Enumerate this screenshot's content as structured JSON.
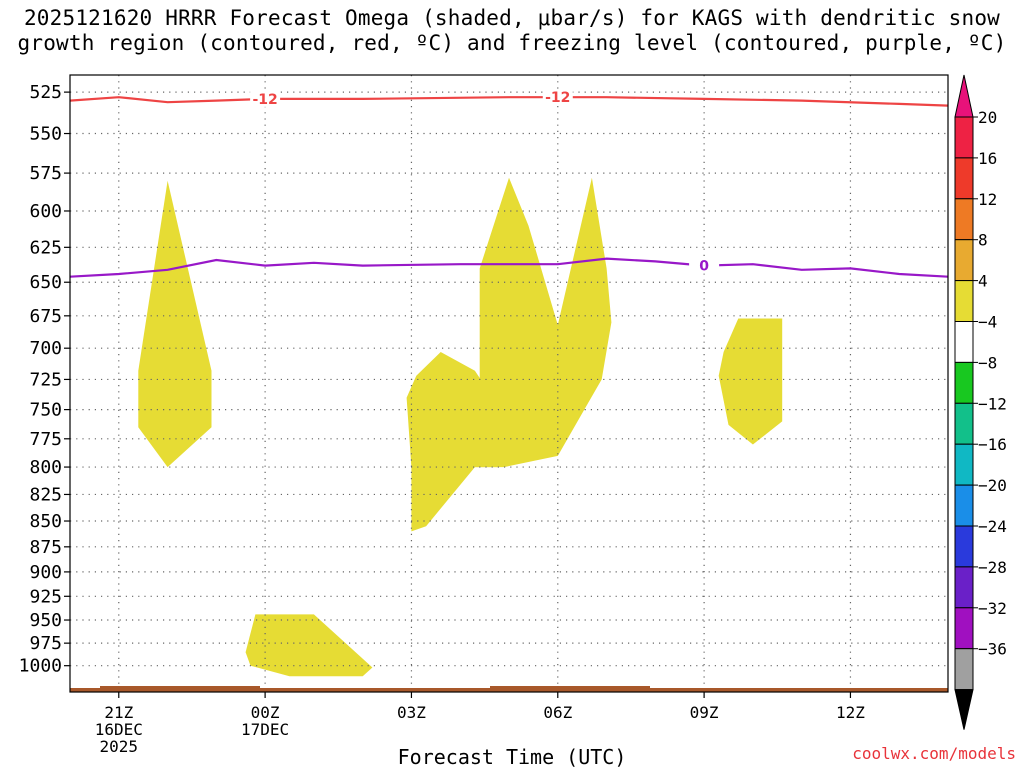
{
  "title": {
    "line1": "2025121620 HRRR Forecast Omega (shaded, μbar/s) for KAGS with dendritic snow",
    "line2": "growth region (contoured, red, ºC) and freezing level (contoured, purple, ºC)"
  },
  "credit": "coolwx.com/models",
  "chart_data": {
    "type": "time-height cross section",
    "xlabel": "Forecast Time (UTC)",
    "x_ticks": [
      {
        "hour": 0,
        "lines": [
          "21Z",
          "16DEC",
          "2025"
        ]
      },
      {
        "hour": 3,
        "lines": [
          "00Z",
          "17DEC"
        ]
      },
      {
        "hour": 6,
        "lines": [
          "03Z"
        ]
      },
      {
        "hour": 9,
        "lines": [
          "06Z"
        ]
      },
      {
        "hour": 12,
        "lines": [
          "09Z"
        ]
      },
      {
        "hour": 15,
        "lines": [
          "12Z"
        ]
      }
    ],
    "xlim_hours": [
      -1,
      17
    ],
    "y_ticks_hPa": [
      525,
      550,
      575,
      600,
      625,
      650,
      675,
      700,
      725,
      750,
      775,
      800,
      825,
      850,
      875,
      900,
      925,
      950,
      975,
      1000
    ],
    "ylim_hPa": [
      515,
      1030
    ],
    "y_scale": "log-pressure",
    "grid": "dotted",
    "colorbar": {
      "unit": "μbar/s",
      "levels": [
        "20",
        "16",
        "12",
        "8",
        "4",
        "−4",
        "−8",
        "−12",
        "−16",
        "−20",
        "−24",
        "−28",
        "−32",
        "−36"
      ],
      "colors": [
        "#ee2244",
        "#ee3a2a",
        "#ee7a24",
        "#e8aa30",
        "#e6dc34",
        "#ffffff",
        "#18c820",
        "#12c08a",
        "#10b8c4",
        "#1a8ee8",
        "#2a3adc",
        "#6a20c8",
        "#a010c0",
        "#a0a0a0"
      ],
      "top_extension_color": "#e8127a",
      "bottom_extension_color": "#000000"
    },
    "shaded_regions": [
      {
        "category": "4 to 8",
        "color": "#e6dc34",
        "points": [
          [
            1.0,
            580
          ],
          [
            1.9,
            718
          ],
          [
            1.9,
            765
          ],
          [
            1.0,
            800
          ],
          [
            0.4,
            765
          ],
          [
            0.4,
            718
          ]
        ]
      },
      {
        "category": "4 to 8",
        "color": "#e6dc34",
        "points": [
          [
            2.8,
            944
          ],
          [
            4.0,
            944
          ],
          [
            5.2,
            1002
          ],
          [
            5.0,
            1012
          ],
          [
            3.5,
            1012
          ],
          [
            2.7,
            1000
          ],
          [
            2.6,
            985
          ]
        ]
      },
      {
        "category": "4 to 8",
        "color": "#e6dc34",
        "points": [
          [
            6.1,
            722
          ],
          [
            6.6,
            703
          ],
          [
            7.3,
            718
          ],
          [
            7.8,
            748
          ],
          [
            7.8,
            800
          ],
          [
            7.3,
            800
          ],
          [
            6.3,
            855
          ],
          [
            6.0,
            860
          ],
          [
            6.0,
            800
          ],
          [
            5.9,
            740
          ]
        ]
      },
      {
        "category": "4 to 8",
        "color": "#e6dc34",
        "points": [
          [
            7.4,
            640
          ],
          [
            8.0,
            578
          ],
          [
            8.4,
            610
          ],
          [
            9.0,
            682
          ],
          [
            9.7,
            578
          ],
          [
            10.0,
            640
          ],
          [
            10.1,
            680
          ],
          [
            9.9,
            725
          ],
          [
            9.5,
            753
          ],
          [
            9.0,
            790
          ],
          [
            7.9,
            800
          ],
          [
            7.3,
            800
          ],
          [
            7.4,
            760
          ]
        ]
      },
      {
        "category": "4 to 8",
        "color": "#e6dc34",
        "points": [
          [
            12.4,
            703
          ],
          [
            12.7,
            677
          ],
          [
            13.6,
            677
          ],
          [
            13.6,
            760
          ],
          [
            13.0,
            780
          ],
          [
            12.5,
            763
          ],
          [
            12.3,
            722
          ]
        ]
      }
    ],
    "contours": [
      {
        "name": "dendritic snow growth region",
        "color": "#ee4444",
        "label": "-12",
        "label_hours": [
          3.0,
          9.0
        ],
        "points": [
          [
            -1,
            530
          ],
          [
            0,
            528
          ],
          [
            1,
            531
          ],
          [
            2,
            530
          ],
          [
            3,
            529
          ],
          [
            5,
            529
          ],
          [
            8,
            528
          ],
          [
            10,
            528
          ],
          [
            12,
            529
          ],
          [
            14,
            530
          ],
          [
            16,
            532
          ],
          [
            17,
            533
          ]
        ]
      },
      {
        "name": "freezing level",
        "color": "#9818c8",
        "label": "0",
        "label_hours": [
          12.0
        ],
        "points": [
          [
            -1,
            646
          ],
          [
            0,
            644
          ],
          [
            1,
            641
          ],
          [
            2,
            634
          ],
          [
            3,
            638
          ],
          [
            4,
            636
          ],
          [
            5,
            638
          ],
          [
            7,
            637
          ],
          [
            8,
            637
          ],
          [
            9,
            637
          ],
          [
            10,
            633
          ],
          [
            11,
            635
          ],
          [
            12,
            638
          ],
          [
            13,
            637
          ],
          [
            14,
            641
          ],
          [
            15,
            640
          ],
          [
            16,
            644
          ],
          [
            17,
            646
          ]
        ]
      }
    ],
    "surface_band_color": "#a8582a"
  }
}
